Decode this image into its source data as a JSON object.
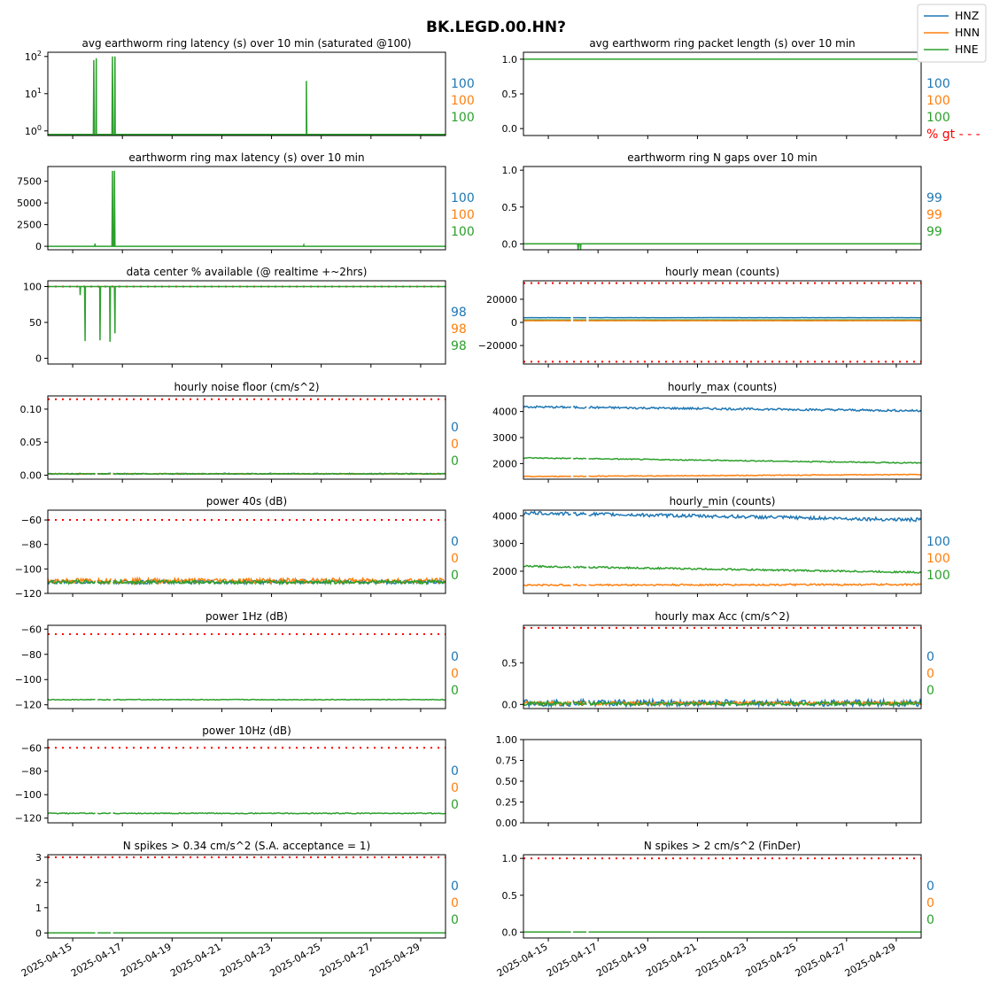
{
  "figure": {
    "title": "BK.LEGD.00.HN?",
    "colors": {
      "HNZ": "#1f77b4",
      "HNN": "#ff7f0e",
      "HNE": "#2ca02c",
      "threshold": "#ff0000"
    },
    "legend": {
      "placement": "top-right",
      "entries": [
        "HNZ",
        "HNN",
        "HNE"
      ]
    },
    "x_axis": {
      "range": [
        "2025-04-14",
        "2025-04-30"
      ],
      "tick_labels": [
        "2025-04-15",
        "2025-04-17",
        "2025-04-19",
        "2025-04-21",
        "2025-04-23",
        "2025-04-25",
        "2025-04-27",
        "2025-04-29"
      ]
    }
  },
  "chart_data": [
    {
      "id": "ring_latency",
      "type": "line",
      "title": "avg earthworm ring latency (s)   over 10 min (saturated @100)",
      "yscale": "log",
      "ylim": [
        0.75,
        130
      ],
      "yticks": [
        1,
        10,
        100
      ],
      "ytick_labels": [
        "10^0",
        "10^1",
        "10^2"
      ],
      "series": [
        {
          "name": "HNE",
          "baseline": 0.8,
          "spikes": [
            [
              "2025-04-15.85",
              80
            ],
            [
              "2025-04-15.95",
              90
            ],
            [
              "2025-04-16.6",
              100
            ],
            [
              "2025-04-16.7",
              100
            ],
            [
              "2025-04-24.4",
              22
            ]
          ]
        }
      ],
      "percent": {
        "HNZ": "100",
        "HNN": "100",
        "HNE": "100"
      }
    },
    {
      "id": "packet_length",
      "type": "line",
      "title": "avg earthworm ring packet length (s)   over 10 min",
      "ylim": [
        -0.1,
        1.1
      ],
      "yticks": [
        0,
        0.5,
        1
      ],
      "ytick_labels": [
        "0.0",
        "0.5",
        "1.0"
      ],
      "series": [
        {
          "name": "HNE",
          "baseline": 1.0,
          "spikes": []
        }
      ],
      "percent": {
        "HNZ": "100",
        "HNN": "100",
        "HNE": "100"
      },
      "gt_label": "% gt - - -"
    },
    {
      "id": "max_latency",
      "type": "line",
      "title": "earthworm ring max latency (s)   over 10 min",
      "ylim": [
        -400,
        9200
      ],
      "yticks": [
        0,
        2500,
        5000,
        7500
      ],
      "ytick_labels": [
        "0",
        "2500",
        "5000",
        "7500"
      ],
      "series": [
        {
          "name": "HNE",
          "baseline": 0,
          "spikes": [
            [
              "2025-04-15.9",
              300
            ],
            [
              "2025-04-16.6",
              8700
            ],
            [
              "2025-04-16.68",
              8700
            ],
            [
              "2025-04-24.3",
              150
            ]
          ]
        }
      ],
      "percent": {
        "HNZ": "100",
        "HNN": "100",
        "HNE": "100"
      }
    },
    {
      "id": "n_gaps",
      "type": "line",
      "title": "earthworm ring N gaps   over 10 min",
      "ylim": [
        -0.08,
        1.05
      ],
      "yticks": [
        0,
        0.5,
        1
      ],
      "ytick_labels": [
        "0.0",
        "0.5",
        "1.0"
      ],
      "series": [
        {
          "name": "HNE",
          "baseline": 0,
          "spikes": [
            [
              "2025-04-16.2",
              -0.08
            ],
            [
              "2025-04-16.3",
              -0.08
            ]
          ]
        }
      ],
      "percent": {
        "HNZ": "99",
        "HNN": "99",
        "HNE": "99"
      }
    },
    {
      "id": "dc_available",
      "type": "line",
      "title": "data center % available (@ realtime +~2hrs)",
      "ylim": [
        -8,
        108
      ],
      "yticks": [
        0,
        50,
        100
      ],
      "ytick_labels": [
        "0",
        "50",
        "100"
      ],
      "threshold": 100,
      "series": [
        {
          "name": "HNE",
          "baseline": 100,
          "spikes": [
            [
              "2025-04-15.3",
              88
            ],
            [
              "2025-04-15.5",
              24
            ],
            [
              "2025-04-16.1",
              25
            ],
            [
              "2025-04-16.5",
              23
            ],
            [
              "2025-04-16.7",
              35
            ]
          ]
        }
      ],
      "percent": {
        "HNZ": "98",
        "HNN": "98",
        "HNE": "98"
      }
    },
    {
      "id": "hourly_mean",
      "type": "line",
      "title": "hourly mean (counts)",
      "ylim": [
        -36000,
        36000
      ],
      "yticks": [
        -20000,
        0,
        20000
      ],
      "ytick_labels": [
        "−20000",
        "0",
        "20000"
      ],
      "threshold": [
        34000,
        -34000
      ],
      "series": [
        {
          "name": "HNZ",
          "baseline": 4100,
          "noise": 80
        },
        {
          "name": "HNE",
          "baseline": 2100,
          "noise": 60
        },
        {
          "name": "HNN",
          "baseline": 1500,
          "noise": 40
        }
      ],
      "percent": null
    },
    {
      "id": "noise_floor",
      "type": "line",
      "title": "hourly noise floor (cm/s^2)",
      "ylim": [
        -0.006,
        0.12
      ],
      "yticks": [
        0,
        0.05,
        0.1
      ],
      "ytick_labels": [
        "0.00",
        "0.05",
        "0.10"
      ],
      "threshold": 0.115,
      "series": [
        {
          "name": "HNZ",
          "baseline": 0.002,
          "noise": 0.0008
        },
        {
          "name": "HNN",
          "baseline": 0.002,
          "noise": 0.0005
        },
        {
          "name": "HNE",
          "baseline": 0.002,
          "noise": 0.0005
        }
      ],
      "percent": {
        "HNZ": "0",
        "HNN": "0",
        "HNE": "0"
      }
    },
    {
      "id": "hourly_max",
      "type": "line",
      "title": "hourly_max (counts)",
      "ylim": [
        1400,
        4600
      ],
      "yticks": [
        2000,
        3000,
        4000
      ],
      "ytick_labels": [
        "2000",
        "3000",
        "4000"
      ],
      "series": [
        {
          "name": "HNZ",
          "start": 4180,
          "end": 4030,
          "noise": 40
        },
        {
          "name": "HNE",
          "start": 2220,
          "end": 2020,
          "noise": 20
        },
        {
          "name": "HNN",
          "start": 1500,
          "end": 1580,
          "noise": 15
        }
      ],
      "percent": null
    },
    {
      "id": "power_40s",
      "type": "line",
      "title": "power 40s (dB)",
      "ylim": [
        -120,
        -52
      ],
      "yticks": [
        -120,
        -100,
        -80,
        -60
      ],
      "ytick_labels": [
        "−120",
        "−100",
        "−80",
        "−60"
      ],
      "threshold": -60,
      "series": [
        {
          "name": "HNZ",
          "baseline": -111,
          "noise": 1.5
        },
        {
          "name": "HNN",
          "baseline": -110,
          "noise": 2
        },
        {
          "name": "HNE",
          "baseline": -111,
          "noise": 1.5
        }
      ],
      "percent": {
        "HNZ": "0",
        "HNN": "0",
        "HNE": "0"
      }
    },
    {
      "id": "hourly_min",
      "type": "line",
      "title": "hourly_min (counts)",
      "ylim": [
        1200,
        4200
      ],
      "yticks": [
        2000,
        3000,
        4000
      ],
      "ytick_labels": [
        "2000",
        "3000",
        "4000"
      ],
      "series": [
        {
          "name": "HNZ",
          "start": 4100,
          "end": 3850,
          "noise": 60
        },
        {
          "name": "HNE",
          "start": 2180,
          "end": 1960,
          "noise": 30
        },
        {
          "name": "HNN",
          "start": 1500,
          "end": 1520,
          "noise": 30
        }
      ],
      "percent": {
        "HNZ": "100",
        "HNN": "100",
        "HNE": "100"
      }
    },
    {
      "id": "power_1hz",
      "type": "line",
      "title": "power 1Hz (dB)",
      "ylim": [
        -123,
        -57
      ],
      "yticks": [
        -120,
        -100,
        -80,
        -60
      ],
      "ytick_labels": [
        "−120",
        "−100",
        "−80",
        "−60"
      ],
      "threshold": -64,
      "series": [
        {
          "name": "HNE",
          "baseline": -116,
          "noise": 0.3
        }
      ],
      "percent": {
        "HNZ": "0",
        "HNN": "0",
        "HNE": "0"
      }
    },
    {
      "id": "max_acc",
      "type": "line",
      "title": "hourly max Acc (cm/s^2)",
      "ylim": [
        -0.05,
        0.95
      ],
      "yticks": [
        0,
        0.5
      ],
      "ytick_labels": [
        "0.0",
        "0.5"
      ],
      "threshold": 0.92,
      "series": [
        {
          "name": "HNZ",
          "baseline": 0.01,
          "noise": 0.04
        },
        {
          "name": "HNN",
          "baseline": 0.01,
          "noise": 0.02
        },
        {
          "name": "HNE",
          "baseline": 0.005,
          "noise": 0.02
        }
      ],
      "percent": {
        "HNZ": "0",
        "HNN": "0",
        "HNE": "0"
      }
    },
    {
      "id": "power_10hz",
      "type": "line",
      "title": "power 10Hz (dB)",
      "ylim": [
        -124,
        -53
      ],
      "yticks": [
        -120,
        -100,
        -80,
        -60
      ],
      "ytick_labels": [
        "−120",
        "−100",
        "−80",
        "−60"
      ],
      "threshold": -60,
      "series": [
        {
          "name": "HNE",
          "baseline": -116,
          "noise": 0.4
        }
      ],
      "percent": {
        "HNZ": "0",
        "HNN": "0",
        "HNE": "0"
      }
    },
    {
      "id": "empty",
      "type": "line",
      "title": "",
      "ylim": [
        0,
        1
      ],
      "yticks": [
        0,
        0.25,
        0.5,
        0.75,
        1
      ],
      "ytick_labels": [
        "0.00",
        "0.25",
        "0.50",
        "0.75",
        "1.00"
      ],
      "series": [],
      "percent": null
    },
    {
      "id": "spikes_034",
      "type": "line",
      "title": "N spikes > 0.34 cm/s^2 (S.A. acceptance = 1)",
      "ylim": [
        -0.2,
        3.1
      ],
      "yticks": [
        0,
        1,
        2,
        3
      ],
      "ytick_labels": [
        "0",
        "1",
        "2",
        "3"
      ],
      "threshold": 3,
      "series": [
        {
          "name": "HNE",
          "baseline": 0,
          "spikes": []
        }
      ],
      "percent": {
        "HNZ": "0",
        "HNN": "0",
        "HNE": "0"
      },
      "xlabels": true
    },
    {
      "id": "spikes_2",
      "type": "line",
      "title": "N spikes > 2 cm/s^2 (FinDer)",
      "ylim": [
        -0.08,
        1.05
      ],
      "yticks": [
        0,
        0.5,
        1
      ],
      "ytick_labels": [
        "0.0",
        "0.5",
        "1.0"
      ],
      "threshold": 1,
      "series": [
        {
          "name": "HNE",
          "baseline": 0,
          "spikes": []
        }
      ],
      "percent": {
        "HNZ": "0",
        "HNN": "0",
        "HNE": "0"
      },
      "xlabels": true
    }
  ]
}
